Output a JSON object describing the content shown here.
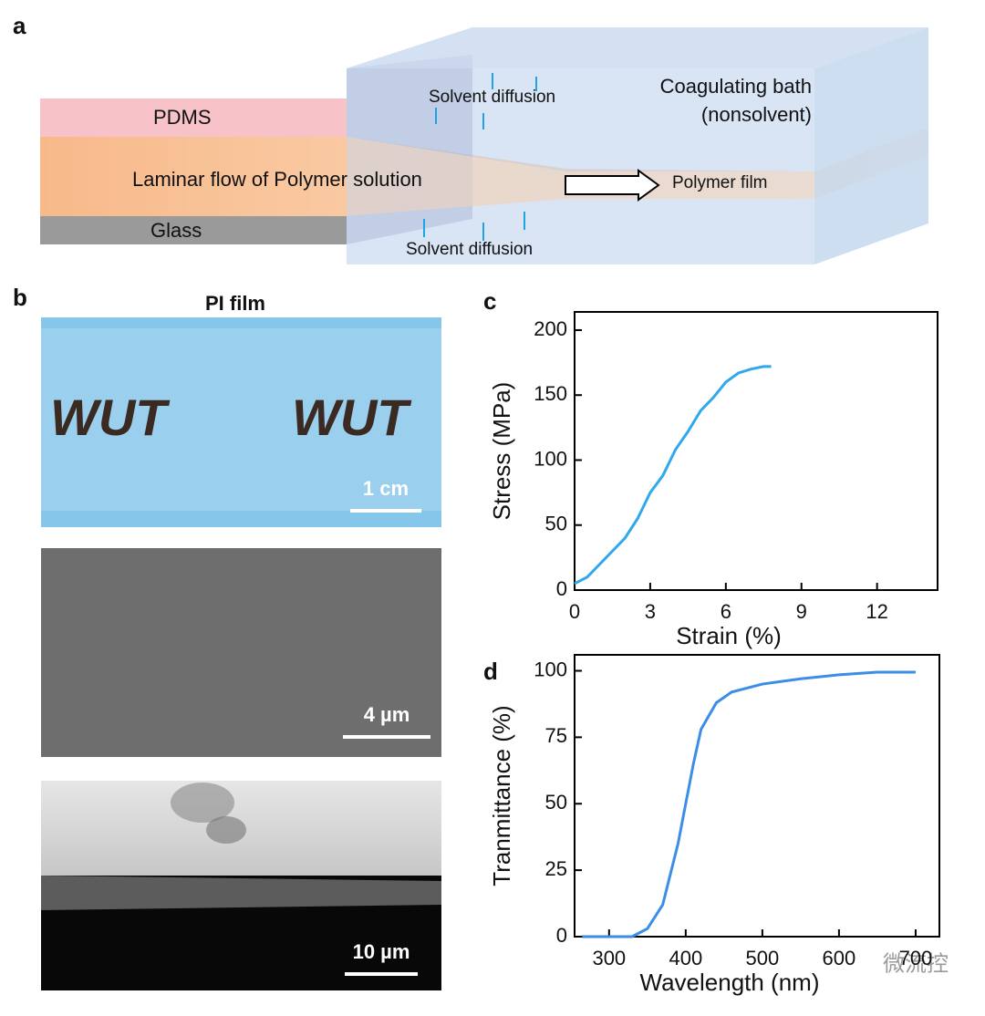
{
  "panel_labels": [
    "a",
    "b",
    "c",
    "d"
  ],
  "diagram": {
    "pdms": "PDMS",
    "flow": "Laminar flow of Polymer solution",
    "glass": "Glass",
    "diffusion_top": "Solvent diffusion",
    "diffusion_bottom": "Solvent diffusion",
    "bath": "Coagulating bath",
    "bath_note": "(nonsolvent)",
    "film": "Polymer  film"
  },
  "images": {
    "title": "PI film",
    "photo_text": [
      "WUT",
      "WUT"
    ],
    "scale_bars": [
      "1 cm",
      "4 µm",
      "10 µm"
    ]
  },
  "watermark": "微流控",
  "chart_data": [
    {
      "type": "line",
      "xlabel": "Strain (%)",
      "ylabel": "Stress (MPa)",
      "color": "#2fa8ec",
      "x": [
        0,
        0.5,
        1,
        1.5,
        2,
        2.5,
        3,
        3.5,
        4,
        4.5,
        5,
        5.5,
        6,
        6.5,
        7,
        7.5,
        7.8
      ],
      "values": [
        5,
        10,
        20,
        30,
        40,
        55,
        75,
        88,
        108,
        122,
        138,
        148,
        160,
        167,
        170,
        172,
        172
      ],
      "xlim": [
        0,
        14.4
      ],
      "xticks": [
        0,
        3,
        6,
        9,
        12
      ],
      "ylim": [
        0,
        214
      ],
      "yticks": [
        0,
        50,
        100,
        150,
        200
      ]
    },
    {
      "type": "line",
      "xlabel": "Wavelength (nm)",
      "ylabel": "Tranmittance (%)",
      "color": "#3a8ee6",
      "x": [
        265,
        300,
        330,
        350,
        370,
        390,
        400,
        410,
        420,
        440,
        460,
        500,
        550,
        600,
        650,
        700
      ],
      "values": [
        0,
        0,
        0,
        3,
        12,
        35,
        50,
        65,
        78,
        88,
        92,
        95,
        97,
        98.5,
        99.5,
        99.5
      ],
      "xlim": [
        255,
        731
      ],
      "xticks": [
        300,
        400,
        500,
        600,
        700
      ],
      "ylim": [
        0,
        106
      ],
      "yticks": [
        0,
        25,
        50,
        75,
        100
      ]
    }
  ]
}
